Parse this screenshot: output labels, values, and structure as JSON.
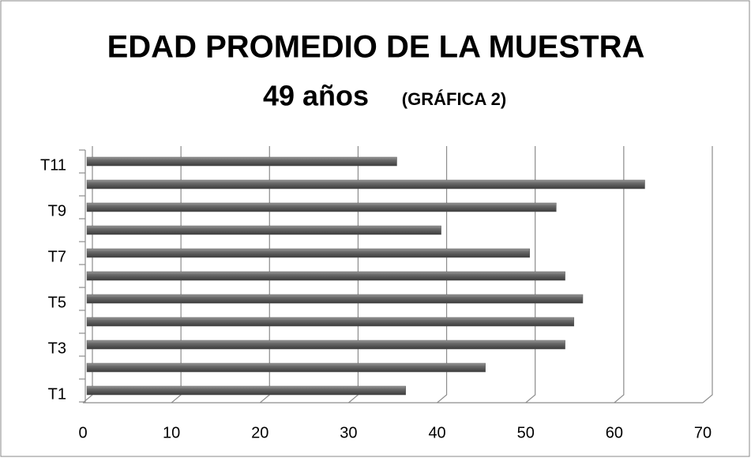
{
  "chart_data": {
    "type": "bar",
    "orientation": "horizontal",
    "title": "EDAD PROMEDIO DE LA MUESTRA",
    "subtitle": "49 años",
    "subtitle_note": "(GRÁFICA 2)",
    "categories": [
      "T1",
      null,
      "T3",
      null,
      "T5",
      null,
      "T7",
      null,
      "T9",
      null,
      "T11"
    ],
    "values": [
      36,
      45,
      54,
      55,
      56,
      54,
      50,
      40,
      53,
      63,
      35
    ],
    "color": "#5a5a5a",
    "xlim": [
      0,
      70
    ],
    "xticks": [
      0,
      10,
      20,
      30,
      40,
      50,
      60,
      70
    ],
    "grid": true
  }
}
